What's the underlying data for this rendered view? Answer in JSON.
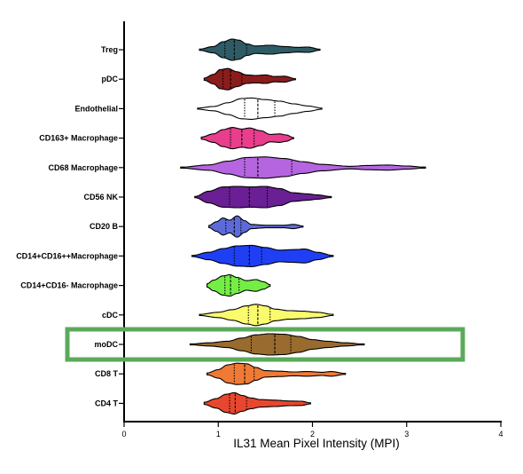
{
  "chart_data": {
    "type": "violin",
    "orientation": "horizontal",
    "title": "",
    "xlabel": "IL31 Mean Pixel Intensity (MPI)",
    "ylabel": "",
    "xlim": [
      0,
      4
    ],
    "xticks": [
      0,
      1,
      2,
      3,
      4
    ],
    "grid": false,
    "highlight": {
      "category": "moDC",
      "color": "#5aaa5a"
    },
    "categories": [
      "Treg",
      "pDC",
      "Endothelial",
      "CD163+ Macrophage",
      "CD68 Macrophage",
      "CD56 NK",
      "CD20 B",
      "CD14+CD16++Macrophage",
      "CD14+CD16- Macrophage",
      "cDC",
      "moDC",
      "CD8 T",
      "CD4 T"
    ],
    "series": [
      {
        "category": "Treg",
        "color": "#2e5b66",
        "min": 0.8,
        "max": 2.08,
        "q1": 1.07,
        "median": 1.17,
        "q3": 1.3,
        "profile": [
          [
            0.8,
            0.06
          ],
          [
            0.95,
            0.3
          ],
          [
            1.05,
            0.75
          ],
          [
            1.15,
            1.0
          ],
          [
            1.22,
            0.9
          ],
          [
            1.3,
            0.55
          ],
          [
            1.4,
            0.35
          ],
          [
            1.55,
            0.42
          ],
          [
            1.7,
            0.3
          ],
          [
            1.85,
            0.22
          ],
          [
            1.95,
            0.25
          ],
          [
            2.08,
            0.05
          ]
        ]
      },
      {
        "category": "pDC",
        "color": "#8b1c1c",
        "min": 0.85,
        "max": 1.82,
        "q1": 1.05,
        "median": 1.13,
        "q3": 1.25,
        "profile": [
          [
            0.85,
            0.1
          ],
          [
            0.95,
            0.45
          ],
          [
            1.02,
            0.9
          ],
          [
            1.1,
            1.0
          ],
          [
            1.2,
            0.7
          ],
          [
            1.3,
            0.4
          ],
          [
            1.4,
            0.35
          ],
          [
            1.5,
            0.4
          ],
          [
            1.6,
            0.25
          ],
          [
            1.7,
            0.28
          ],
          [
            1.82,
            0.05
          ]
        ]
      },
      {
        "category": "Endothelial",
        "color": "#ffffff",
        "min": 0.78,
        "max": 2.1,
        "q1": 1.28,
        "median": 1.42,
        "q3": 1.6,
        "profile": [
          [
            0.78,
            0.05
          ],
          [
            0.95,
            0.2
          ],
          [
            1.1,
            0.55
          ],
          [
            1.25,
            0.95
          ],
          [
            1.35,
            1.0
          ],
          [
            1.5,
            0.85
          ],
          [
            1.65,
            0.7
          ],
          [
            1.8,
            0.45
          ],
          [
            1.95,
            0.25
          ],
          [
            2.1,
            0.05
          ]
        ]
      },
      {
        "category": "CD163+ Macrophage",
        "color": "#e83e8c",
        "min": 0.82,
        "max": 1.8,
        "q1": 1.13,
        "median": 1.25,
        "q3": 1.38,
        "profile": [
          [
            0.82,
            0.1
          ],
          [
            0.95,
            0.4
          ],
          [
            1.05,
            0.8
          ],
          [
            1.15,
            1.0
          ],
          [
            1.25,
            0.85
          ],
          [
            1.33,
            0.95
          ],
          [
            1.45,
            0.7
          ],
          [
            1.55,
            0.35
          ],
          [
            1.65,
            0.4
          ],
          [
            1.72,
            0.3
          ],
          [
            1.8,
            0.05
          ]
        ]
      },
      {
        "category": "CD68 Macrophage",
        "color": "#b565e0",
        "min": 0.6,
        "max": 3.2,
        "q1": 1.28,
        "median": 1.42,
        "q3": 1.78,
        "profile": [
          [
            0.6,
            0.04
          ],
          [
            0.9,
            0.25
          ],
          [
            1.1,
            0.6
          ],
          [
            1.3,
            0.95
          ],
          [
            1.5,
            1.0
          ],
          [
            1.7,
            0.85
          ],
          [
            1.9,
            0.55
          ],
          [
            2.1,
            0.3
          ],
          [
            2.4,
            0.12
          ],
          [
            2.6,
            0.2
          ],
          [
            2.8,
            0.24
          ],
          [
            3.0,
            0.15
          ],
          [
            3.2,
            0.03
          ]
        ]
      },
      {
        "category": "CD56 NK",
        "color": "#6a1f94",
        "min": 0.75,
        "max": 2.2,
        "q1": 1.12,
        "median": 1.33,
        "q3": 1.52,
        "profile": [
          [
            0.75,
            0.05
          ],
          [
            0.9,
            0.55
          ],
          [
            1.05,
            0.95
          ],
          [
            1.2,
            1.0
          ],
          [
            1.35,
            0.95
          ],
          [
            1.5,
            1.0
          ],
          [
            1.65,
            0.8
          ],
          [
            1.8,
            0.4
          ],
          [
            1.95,
            0.3
          ],
          [
            2.05,
            0.2
          ],
          [
            2.2,
            0.05
          ]
        ]
      },
      {
        "category": "CD20 B",
        "color": "#5d6bda",
        "min": 0.9,
        "max": 1.9,
        "q1": 1.08,
        "median": 1.17,
        "q3": 1.24,
        "profile": [
          [
            0.9,
            0.1
          ],
          [
            0.98,
            0.45
          ],
          [
            1.05,
            0.8
          ],
          [
            1.12,
            0.6
          ],
          [
            1.2,
            1.0
          ],
          [
            1.28,
            0.55
          ],
          [
            1.35,
            0.2
          ],
          [
            1.5,
            0.12
          ],
          [
            1.7,
            0.12
          ],
          [
            1.8,
            0.2
          ],
          [
            1.9,
            0.05
          ]
        ]
      },
      {
        "category": "CD14+CD16++Macrophage",
        "color": "#1f3ff5",
        "min": 0.72,
        "max": 2.22,
        "q1": 1.17,
        "median": 1.33,
        "q3": 1.46,
        "profile": [
          [
            0.72,
            0.05
          ],
          [
            0.9,
            0.35
          ],
          [
            1.05,
            0.7
          ],
          [
            1.2,
            0.95
          ],
          [
            1.35,
            1.0
          ],
          [
            1.5,
            0.8
          ],
          [
            1.65,
            0.55
          ],
          [
            1.8,
            0.6
          ],
          [
            1.92,
            0.65
          ],
          [
            2.05,
            0.35
          ],
          [
            2.22,
            0.05
          ]
        ]
      },
      {
        "category": "CD14+CD16- Macrophage",
        "color": "#74ee45",
        "min": 0.88,
        "max": 1.55,
        "q1": 1.07,
        "median": 1.13,
        "q3": 1.22,
        "profile": [
          [
            0.88,
            0.15
          ],
          [
            0.95,
            0.5
          ],
          [
            1.05,
            0.9
          ],
          [
            1.12,
            1.0
          ],
          [
            1.2,
            0.75
          ],
          [
            1.3,
            0.45
          ],
          [
            1.4,
            0.55
          ],
          [
            1.48,
            0.35
          ],
          [
            1.55,
            0.08
          ]
        ]
      },
      {
        "category": "cDC",
        "color": "#fafa6e",
        "min": 0.8,
        "max": 2.22,
        "q1": 1.32,
        "median": 1.42,
        "q3": 1.55,
        "profile": [
          [
            0.8,
            0.05
          ],
          [
            1.0,
            0.25
          ],
          [
            1.15,
            0.5
          ],
          [
            1.3,
            0.85
          ],
          [
            1.4,
            1.0
          ],
          [
            1.5,
            0.85
          ],
          [
            1.6,
            0.55
          ],
          [
            1.75,
            0.4
          ],
          [
            1.9,
            0.35
          ],
          [
            2.05,
            0.25
          ],
          [
            2.22,
            0.05
          ]
        ]
      },
      {
        "category": "moDC",
        "color": "#996b2e",
        "min": 0.7,
        "max": 2.55,
        "q1": 1.35,
        "median": 1.6,
        "q3": 1.77,
        "profile": [
          [
            0.7,
            0.04
          ],
          [
            0.9,
            0.15
          ],
          [
            1.1,
            0.3
          ],
          [
            1.25,
            0.6
          ],
          [
            1.4,
            0.9
          ],
          [
            1.55,
            1.0
          ],
          [
            1.7,
            0.95
          ],
          [
            1.85,
            0.75
          ],
          [
            2.0,
            0.45
          ],
          [
            2.15,
            0.3
          ],
          [
            2.35,
            0.15
          ],
          [
            2.55,
            0.03
          ]
        ]
      },
      {
        "category": "CD8 T",
        "color": "#f07a35",
        "min": 0.88,
        "max": 2.35,
        "q1": 1.17,
        "median": 1.28,
        "q3": 1.38,
        "profile": [
          [
            0.88,
            0.08
          ],
          [
            1.0,
            0.4
          ],
          [
            1.1,
            0.85
          ],
          [
            1.2,
            1.0
          ],
          [
            1.3,
            0.95
          ],
          [
            1.4,
            0.6
          ],
          [
            1.5,
            0.3
          ],
          [
            1.65,
            0.25
          ],
          [
            1.8,
            0.18
          ],
          [
            1.95,
            0.22
          ],
          [
            2.1,
            0.15
          ],
          [
            2.2,
            0.22
          ],
          [
            2.35,
            0.04
          ]
        ]
      },
      {
        "category": "CD4 T",
        "color": "#e8472f",
        "min": 0.85,
        "max": 1.98,
        "q1": 1.12,
        "median": 1.18,
        "q3": 1.3,
        "profile": [
          [
            0.85,
            0.1
          ],
          [
            0.98,
            0.45
          ],
          [
            1.08,
            0.85
          ],
          [
            1.17,
            1.0
          ],
          [
            1.25,
            0.75
          ],
          [
            1.35,
            0.5
          ],
          [
            1.45,
            0.35
          ],
          [
            1.6,
            0.3
          ],
          [
            1.75,
            0.22
          ],
          [
            1.88,
            0.2
          ],
          [
            1.98,
            0.05
          ]
        ]
      }
    ]
  }
}
